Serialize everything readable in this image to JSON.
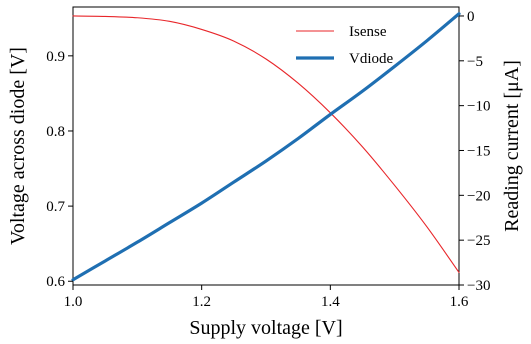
{
  "chart_data": {
    "type": "line",
    "title": "",
    "xlabel": "Supply voltage [V]",
    "ylabel_left": "Voltage across diode [V]",
    "ylabel_right": "Reading current [μA]",
    "xlim": [
      1.0,
      1.6
    ],
    "ylim_left": [
      0.595,
      0.965
    ],
    "ylim_right": [
      -30,
      1.0
    ],
    "x_ticks": [
      1.0,
      1.2,
      1.4,
      1.6
    ],
    "x_tick_labels": [
      "1.0",
      "1.2",
      "1.4",
      "1.6"
    ],
    "y_left_ticks": [
      0.6,
      0.7,
      0.8,
      0.9
    ],
    "y_left_tick_labels": [
      "0.6",
      "0.7",
      "0.8",
      "0.9"
    ],
    "y_right_ticks": [
      0,
      -5,
      -10,
      -15,
      -20,
      -25,
      -30
    ],
    "y_right_tick_labels": [
      "0",
      "−5",
      "−10",
      "−15",
      "−20",
      "−25",
      "−30"
    ],
    "grid": false,
    "legend_position": "top-right",
    "series": [
      {
        "name": "Isense",
        "axis": "right",
        "color": "#e8262a",
        "line": "thin",
        "x": [
          1.0,
          1.05,
          1.1,
          1.15,
          1.2,
          1.25,
          1.3,
          1.35,
          1.4,
          1.45,
          1.5,
          1.55,
          1.6
        ],
        "y": [
          0.0,
          -0.05,
          -0.2,
          -0.6,
          -1.5,
          -2.8,
          -4.8,
          -7.5,
          -10.8,
          -14.6,
          -18.9,
          -23.5,
          -28.6
        ]
      },
      {
        "name": "Vdiode",
        "axis": "left",
        "color": "#1f6fb2",
        "line": "thick",
        "x": [
          1.0,
          1.05,
          1.1,
          1.15,
          1.2,
          1.25,
          1.3,
          1.35,
          1.4,
          1.45,
          1.5,
          1.55,
          1.6
        ],
        "y": [
          0.602,
          0.627,
          0.652,
          0.678,
          0.704,
          0.732,
          0.76,
          0.79,
          0.822,
          0.853,
          0.886,
          0.92,
          0.956
        ]
      }
    ]
  }
}
